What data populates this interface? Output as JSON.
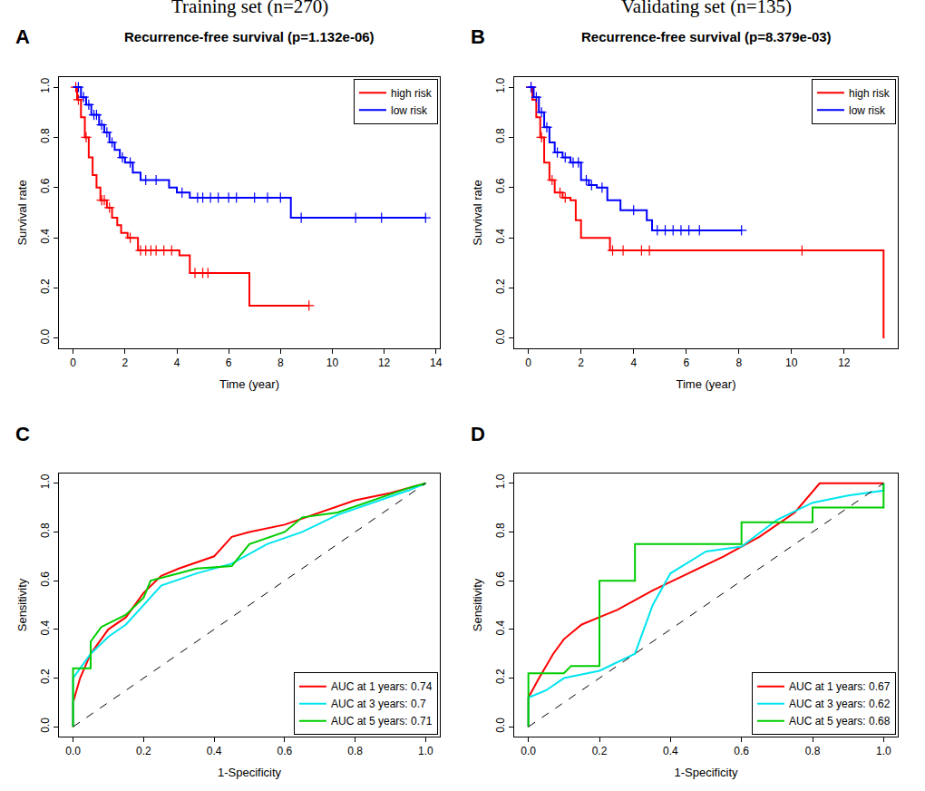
{
  "chart_data": [
    {
      "type": "step",
      "panel": "A",
      "subtitle": "Training set (n=270)",
      "title": "Recurrence-free survival (p=1.132e-06)",
      "x_label": "Time (year)",
      "y_label": "Survival rate",
      "xlim": [
        -0.55,
        14.15
      ],
      "xticks": [
        0,
        2,
        4,
        6,
        8,
        10,
        12,
        14
      ],
      "ylim": [
        -0.04,
        1.04
      ],
      "yticks": [
        {
          "value": 0,
          "label": "0.0"
        },
        0.2,
        0.4,
        0.6,
        0.8,
        {
          "value": 1,
          "label": "1.0"
        }
      ],
      "grid": false,
      "legend": "top right",
      "series": [
        {
          "name": "high risk",
          "color": "#ff0000",
          "line_style": "solid",
          "x": [
            0,
            0.15,
            0.3,
            0.45,
            0.6,
            0.75,
            0.9,
            1.05,
            1.3,
            1.5,
            1.7,
            1.85,
            2.1,
            2.5,
            4.1,
            4.5,
            6.8,
            9.1
          ],
          "values": [
            1,
            0.95,
            0.88,
            0.8,
            0.72,
            0.65,
            0.6,
            0.55,
            0.52,
            0.48,
            0.45,
            0.42,
            0.4,
            0.35,
            0.33,
            0.26,
            0.13,
            0.13
          ],
          "censored": {
            "x": [
              0.1,
              0.2,
              0.5,
              1.1,
              1.2,
              1.4,
              2.2,
              2.6,
              2.8,
              3.0,
              3.2,
              3.5,
              3.8,
              4.7,
              5.0,
              5.2,
              9.1
            ],
            "values": [
              1,
              0.95,
              0.8,
              0.55,
              0.55,
              0.52,
              0.4,
              0.35,
              0.35,
              0.35,
              0.35,
              0.35,
              0.35,
              0.26,
              0.26,
              0.26,
              0.13
            ]
          }
        },
        {
          "name": "low risk",
          "color": "#0000ff",
          "line_style": "solid",
          "x": [
            0,
            0.3,
            0.5,
            0.7,
            1.0,
            1.2,
            1.4,
            1.6,
            1.8,
            2.0,
            2.3,
            2.6,
            3.7,
            4.0,
            4.5,
            8.4,
            13.6
          ],
          "values": [
            1,
            0.96,
            0.93,
            0.89,
            0.85,
            0.82,
            0.78,
            0.75,
            0.72,
            0.7,
            0.66,
            0.63,
            0.6,
            0.58,
            0.56,
            0.48,
            0.48
          ],
          "censored": {
            "x": [
              0.2,
              0.4,
              0.6,
              0.8,
              0.9,
              1.1,
              1.3,
              1.5,
              1.9,
              2.2,
              2.8,
              3.2,
              4.2,
              4.8,
              5.0,
              5.3,
              5.6,
              6.0,
              6.3,
              7.0,
              7.5,
              8.0,
              8.8,
              10.9,
              11.9,
              13.6
            ],
            "values": [
              1,
              0.96,
              0.93,
              0.89,
              0.89,
              0.85,
              0.82,
              0.78,
              0.72,
              0.7,
              0.63,
              0.63,
              0.58,
              0.56,
              0.56,
              0.56,
              0.56,
              0.56,
              0.56,
              0.56,
              0.56,
              0.56,
              0.48,
              0.48,
              0.48,
              0.48
            ]
          }
        }
      ]
    },
    {
      "type": "step",
      "panel": "B",
      "subtitle": "Validating set (n=135)",
      "title": "Recurrence-free survival (p=8.379e-03)",
      "x_label": "Time (year)",
      "y_label": "Survival rate",
      "xlim": [
        -0.54,
        14.04
      ],
      "xticks": [
        0,
        2,
        4,
        6,
        8,
        10,
        12
      ],
      "ylim": [
        -0.04,
        1.04
      ],
      "yticks": [
        {
          "value": 0,
          "label": "0.0"
        },
        0.2,
        0.4,
        0.6,
        0.8,
        {
          "value": 1,
          "label": "1.0"
        }
      ],
      "grid": false,
      "legend": "top right",
      "series": [
        {
          "name": "high risk",
          "color": "#ff0000",
          "line_style": "solid",
          "x": [
            0,
            0.15,
            0.3,
            0.45,
            0.6,
            0.8,
            1.0,
            1.3,
            1.6,
            1.8,
            2.0,
            3.1,
            13.5
          ],
          "values": [
            1,
            0.95,
            0.88,
            0.8,
            0.7,
            0.63,
            0.58,
            0.56,
            0.55,
            0.47,
            0.4,
            0.35,
            0
          ],
          "censored": {
            "x": [
              0.1,
              0.5,
              0.9,
              1.2,
              1.4,
              3.2,
              3.6,
              4.3,
              4.6,
              10.4
            ],
            "values": [
              1,
              0.8,
              0.63,
              0.58,
              0.56,
              0.35,
              0.35,
              0.35,
              0.35,
              0.35
            ]
          }
        },
        {
          "name": "low risk",
          "color": "#0000ff",
          "line_style": "solid",
          "x": [
            0,
            0.2,
            0.4,
            0.6,
            0.8,
            1.0,
            1.3,
            1.6,
            2.0,
            2.3,
            2.6,
            3.0,
            3.5,
            4.5,
            4.7,
            8.1
          ],
          "values": [
            1,
            0.96,
            0.9,
            0.84,
            0.78,
            0.74,
            0.72,
            0.7,
            0.63,
            0.61,
            0.6,
            0.55,
            0.51,
            0.47,
            0.43,
            0.43
          ],
          "censored": {
            "x": [
              0.1,
              0.3,
              0.5,
              0.7,
              1.1,
              1.4,
              1.7,
              1.9,
              2.2,
              2.4,
              2.8,
              4.0,
              4.9,
              5.2,
              5.5,
              5.8,
              6.1,
              6.5,
              8.1
            ],
            "values": [
              1,
              0.96,
              0.9,
              0.84,
              0.74,
              0.72,
              0.7,
              0.7,
              0.63,
              0.61,
              0.6,
              0.51,
              0.43,
              0.43,
              0.43,
              0.43,
              0.43,
              0.43,
              0.43
            ]
          }
        }
      ]
    },
    {
      "type": "line",
      "panel": "C",
      "x_label": "1-Specificity",
      "y_label": "Sensitivity",
      "xlim": [
        -0.04,
        1.04
      ],
      "xticks": [
        {
          "value": 0,
          "label": "0.0"
        },
        0.2,
        0.4,
        0.6,
        0.8,
        {
          "value": 1,
          "label": "1.0"
        }
      ],
      "ylim": [
        -0.04,
        1.04
      ],
      "yticks": [
        {
          "value": 0,
          "label": "0.0"
        },
        0.2,
        0.4,
        0.6,
        0.8,
        {
          "value": 1,
          "label": "1.0"
        }
      ],
      "grid": false,
      "legend": "bottom right",
      "series": [
        {
          "name": "AUC at 1 years: 0.74",
          "color": "#ff0000",
          "line_style": "solid",
          "x": [
            0,
            0,
            0.02,
            0.05,
            0.1,
            0.15,
            0.2,
            0.25,
            0.3,
            0.4,
            0.45,
            0.5,
            0.6,
            0.7,
            0.8,
            0.9,
            1
          ],
          "values": [
            0,
            0.1,
            0.2,
            0.3,
            0.4,
            0.45,
            0.55,
            0.62,
            0.65,
            0.7,
            0.78,
            0.8,
            0.83,
            0.88,
            0.93,
            0.96,
            1
          ]
        },
        {
          "name": "AUC at 3 years: 0.7",
          "color": "#00e5ee",
          "line_style": "solid",
          "x": [
            0,
            0,
            0.05,
            0.1,
            0.15,
            0.2,
            0.25,
            0.35,
            0.45,
            0.55,
            0.65,
            0.75,
            0.85,
            0.95,
            1
          ],
          "values": [
            0,
            0.2,
            0.3,
            0.37,
            0.42,
            0.5,
            0.58,
            0.63,
            0.67,
            0.75,
            0.8,
            0.87,
            0.92,
            0.97,
            1
          ]
        },
        {
          "name": "AUC at 5 years: 0.71",
          "color": "#00cd00",
          "line_style": "solid",
          "x": [
            0,
            0,
            0.05,
            0.05,
            0.08,
            0.15,
            0.2,
            0.22,
            0.3,
            0.35,
            0.45,
            0.5,
            0.6,
            0.65,
            0.75,
            0.85,
            0.95,
            1
          ],
          "values": [
            0,
            0.24,
            0.24,
            0.35,
            0.41,
            0.46,
            0.53,
            0.6,
            0.63,
            0.65,
            0.66,
            0.75,
            0.8,
            0.86,
            0.88,
            0.93,
            0.98,
            1
          ]
        },
        {
          "color": "#000000",
          "line_style": "dashed",
          "x": [
            0,
            1
          ],
          "values": [
            0,
            1
          ]
        }
      ]
    },
    {
      "type": "line",
      "panel": "D",
      "x_label": "1-Specificity",
      "y_label": "Sensitivity",
      "xlim": [
        -0.04,
        1.04
      ],
      "xticks": [
        {
          "value": 0,
          "label": "0.0"
        },
        0.2,
        0.4,
        0.6,
        0.8,
        {
          "value": 1,
          "label": "1.0"
        }
      ],
      "ylim": [
        -0.04,
        1.04
      ],
      "yticks": [
        {
          "value": 0,
          "label": "0.0"
        },
        0.2,
        0.4,
        0.6,
        0.8,
        {
          "value": 1,
          "label": "1.0"
        }
      ],
      "grid": false,
      "legend": "bottom right",
      "series": [
        {
          "name": "AUC at 1 years: 0.67",
          "color": "#ff0000",
          "line_style": "solid",
          "x": [
            0,
            0,
            0.03,
            0.07,
            0.1,
            0.15,
            0.2,
            0.25,
            0.3,
            0.35,
            0.45,
            0.55,
            0.65,
            0.75,
            0.82,
            1
          ],
          "values": [
            0,
            0.12,
            0.2,
            0.3,
            0.36,
            0.42,
            0.45,
            0.48,
            0.52,
            0.56,
            0.63,
            0.7,
            0.78,
            0.88,
            1,
            1
          ]
        },
        {
          "name": "AUC at 3 years: 0.62",
          "color": "#00e5ee",
          "line_style": "solid",
          "x": [
            0,
            0,
            0.05,
            0.1,
            0.2,
            0.3,
            0.35,
            0.4,
            0.5,
            0.6,
            0.7,
            0.8,
            0.9,
            1,
            1
          ],
          "values": [
            0,
            0.12,
            0.15,
            0.2,
            0.23,
            0.3,
            0.5,
            0.63,
            0.72,
            0.74,
            0.85,
            0.92,
            0.95,
            0.97,
            1
          ]
        },
        {
          "name": "AUC at 5 years: 0.68",
          "color": "#00cd00",
          "line_style": "solid",
          "x": [
            0,
            0,
            0.1,
            0.12,
            0.2,
            0.2,
            0.3,
            0.3,
            0.6,
            0.6,
            0.8,
            0.8,
            1,
            1
          ],
          "values": [
            0,
            0.22,
            0.22,
            0.25,
            0.25,
            0.6,
            0.6,
            0.75,
            0.75,
            0.84,
            0.84,
            0.9,
            0.9,
            1
          ]
        },
        {
          "color": "#000000",
          "line_style": "dashed",
          "x": [
            0,
            1
          ],
          "values": [
            0,
            1
          ]
        }
      ]
    }
  ]
}
